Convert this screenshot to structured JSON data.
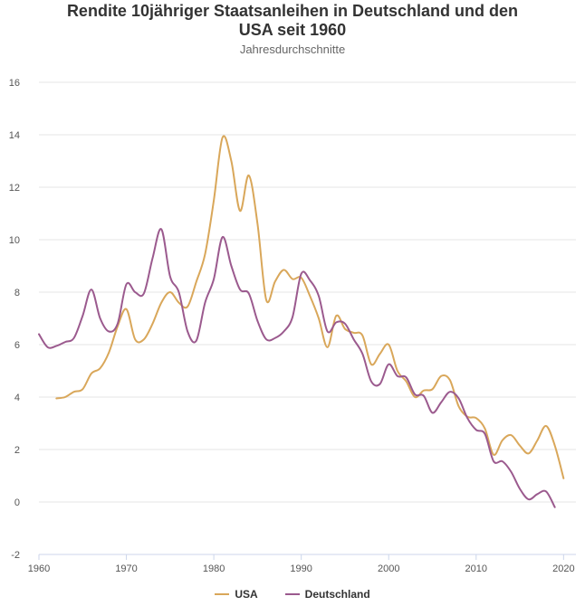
{
  "chart_data": {
    "type": "line",
    "title_line1": "Rendite 10jähriger Staatsanleihen in Deutschland und den",
    "title_line2": "USA seit 1960",
    "subtitle": "Jahresdurchschnitte",
    "xlim": [
      1960,
      2021
    ],
    "ylim": [
      -2,
      16
    ],
    "xticks": [
      1960,
      1970,
      1980,
      1990,
      2000,
      2010,
      2020
    ],
    "yticks": [
      -2,
      0,
      2,
      4,
      6,
      8,
      10,
      12,
      14,
      16
    ],
    "grid": true,
    "legend_position": "bottom",
    "series": [
      {
        "name": "USA",
        "color": "#d9a75a",
        "x": [
          1962,
          1963,
          1964,
          1965,
          1966,
          1967,
          1968,
          1969,
          1970,
          1971,
          1972,
          1973,
          1974,
          1975,
          1976,
          1977,
          1978,
          1979,
          1980,
          1981,
          1982,
          1983,
          1984,
          1985,
          1986,
          1987,
          1988,
          1989,
          1990,
          1991,
          1992,
          1993,
          1994,
          1995,
          1996,
          1997,
          1998,
          1999,
          2000,
          2001,
          2002,
          2003,
          2004,
          2005,
          2006,
          2007,
          2008,
          2009,
          2010,
          2011,
          2012,
          2013,
          2014,
          2015,
          2016,
          2017,
          2018,
          2019,
          2020
        ],
        "y": [
          3.95,
          4.0,
          4.2,
          4.3,
          4.9,
          5.1,
          5.7,
          6.7,
          7.35,
          6.2,
          6.2,
          6.8,
          7.6,
          8.0,
          7.6,
          7.45,
          8.4,
          9.45,
          11.5,
          13.9,
          13.0,
          11.1,
          12.45,
          10.6,
          7.7,
          8.4,
          8.85,
          8.5,
          8.55,
          7.85,
          7.0,
          5.9,
          7.1,
          6.6,
          6.45,
          6.35,
          5.25,
          5.65,
          6.0,
          5.0,
          4.6,
          4.0,
          4.25,
          4.3,
          4.8,
          4.65,
          3.65,
          3.25,
          3.2,
          2.8,
          1.8,
          2.35,
          2.55,
          2.15,
          1.85,
          2.35,
          2.9,
          2.15,
          0.9
        ]
      },
      {
        "name": "Deutschland",
        "color": "#9b5a8e",
        "x": [
          1960,
          1961,
          1962,
          1963,
          1964,
          1965,
          1966,
          1967,
          1968,
          1969,
          1970,
          1971,
          1972,
          1973,
          1974,
          1975,
          1976,
          1977,
          1978,
          1979,
          1980,
          1981,
          1982,
          1983,
          1984,
          1985,
          1986,
          1987,
          1988,
          1989,
          1990,
          1991,
          1992,
          1993,
          1994,
          1995,
          1996,
          1997,
          1998,
          1999,
          2000,
          2001,
          2002,
          2003,
          2004,
          2005,
          2006,
          2007,
          2008,
          2009,
          2010,
          2011,
          2012,
          2013,
          2014,
          2015,
          2016,
          2017,
          2018,
          2019
        ],
        "y": [
          6.4,
          5.9,
          5.95,
          6.1,
          6.25,
          7.1,
          8.1,
          7.0,
          6.5,
          6.8,
          8.3,
          8.0,
          7.95,
          9.3,
          10.4,
          8.6,
          8.0,
          6.5,
          6.15,
          7.6,
          8.5,
          10.1,
          9.0,
          8.1,
          7.95,
          6.9,
          6.2,
          6.25,
          6.5,
          7.05,
          8.7,
          8.45,
          7.85,
          6.5,
          6.85,
          6.8,
          6.2,
          5.65,
          4.6,
          4.5,
          5.25,
          4.8,
          4.75,
          4.1,
          4.05,
          3.4,
          3.8,
          4.2,
          3.95,
          3.2,
          2.75,
          2.6,
          1.55,
          1.55,
          1.15,
          0.5,
          0.1,
          0.3,
          0.4,
          -0.2
        ]
      }
    ]
  }
}
